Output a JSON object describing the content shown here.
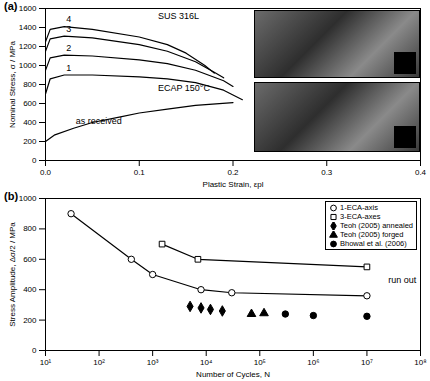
{
  "chart_data": [
    {
      "type": "line",
      "title": "(a)",
      "x_label": "Plastic Strain, εpl",
      "y_label": "Nominal Stress, σ / MPa",
      "xlim": [
        0,
        0.4
      ],
      "xticks": [
        {
          "value": 0,
          "label": "0.0"
        },
        0.1,
        0.2,
        0.3,
        0.4
      ],
      "ylim": [
        0,
        1600
      ],
      "yticks": [
        0,
        200,
        400,
        600,
        800,
        1000,
        1200,
        1400,
        1600
      ],
      "grid": false,
      "series": [
        {
          "name": "as received",
          "color": "#000000",
          "line_style": "solid",
          "x": [
            0,
            0.01,
            0.03,
            0.05,
            0.08,
            0.1,
            0.13,
            0.16,
            0.2
          ],
          "values": [
            200,
            270,
            340,
            400,
            460,
            500,
            540,
            580,
            610
          ]
        },
        {
          "name": "1",
          "color": "#000000",
          "line_style": "solid",
          "x": [
            0,
            0.005,
            0.02,
            0.05,
            0.1,
            0.13,
            0.16,
            0.19,
            0.21
          ],
          "values": [
            700,
            860,
            900,
            900,
            880,
            860,
            820,
            740,
            640
          ]
        },
        {
          "name": "2",
          "color": "#000000",
          "line_style": "solid",
          "x": [
            0,
            0.005,
            0.02,
            0.05,
            0.1,
            0.13,
            0.16,
            0.19,
            0.2
          ],
          "values": [
            950,
            1080,
            1110,
            1100,
            1060,
            1020,
            950,
            840,
            780
          ]
        },
        {
          "name": "3",
          "color": "#000000",
          "line_style": "solid",
          "x": [
            0,
            0.005,
            0.02,
            0.05,
            0.1,
            0.13,
            0.16,
            0.18,
            0.19
          ],
          "values": [
            1150,
            1280,
            1310,
            1290,
            1220,
            1150,
            1040,
            930,
            870
          ]
        },
        {
          "name": "4",
          "color": "#000000",
          "line_style": "solid",
          "x": [
            0,
            0.005,
            0.02,
            0.05,
            0.1,
            0.13,
            0.15,
            0.17,
            0.18
          ],
          "values": [
            1250,
            1380,
            1410,
            1380,
            1300,
            1220,
            1130,
            1000,
            920
          ]
        }
      ],
      "annotations": [
        {
          "text": "SUS 316L",
          "x": 0.12,
          "y": 1520
        },
        {
          "text": "ECAP 150°C",
          "x": 0.12,
          "y": 760
        }
      ]
    },
    {
      "type": "scatter",
      "title": "(b)",
      "x_label": "Number of Cycles, N",
      "y_label": "Stress Amplitude, Δσ/2 / MPa",
      "log": "x",
      "xlim": [
        10,
        100000000
      ],
      "xticks": [
        {
          "value": 10,
          "label": "10¹"
        },
        {
          "value": 100,
          "label": "10²"
        },
        {
          "value": 1000,
          "label": "10³"
        },
        {
          "value": 10000,
          "label": "10⁴"
        },
        {
          "value": 100000,
          "label": "10⁵"
        },
        {
          "value": 1000000,
          "label": "10⁶"
        },
        {
          "value": 10000000,
          "label": "10⁷"
        },
        {
          "value": 100000000,
          "label": "10⁸"
        }
      ],
      "ylim": [
        0,
        1000
      ],
      "yticks": [
        0,
        200,
        400,
        600,
        800,
        1000
      ],
      "grid": false,
      "legend": "top-right",
      "series": [
        {
          "name": "1-ECA-axis",
          "color": "#000000",
          "marker": "circle_open",
          "line_style": "solid",
          "x": [
            30,
            400,
            1000,
            8000,
            30000,
            10000000
          ],
          "values": [
            900,
            600,
            500,
            400,
            380,
            360
          ]
        },
        {
          "name": "3-ECA-axes",
          "color": "#000000",
          "marker": "square_open",
          "line_style": "solid",
          "x": [
            1500,
            7000,
            10000000
          ],
          "values": [
            700,
            600,
            550
          ]
        },
        {
          "name": "Teoh (2005) annealed",
          "color": "#000000",
          "marker": "diamond",
          "line_style": "none",
          "x": [
            5000,
            8000,
            12000,
            20000
          ],
          "values": [
            290,
            280,
            270,
            260
          ]
        },
        {
          "name": "Teoh (2005) forged",
          "color": "#000000",
          "marker": "triangle",
          "line_style": "none",
          "x": [
            70000,
            120000
          ],
          "values": [
            240,
            245
          ]
        },
        {
          "name": "Bhowal et al. (2006)",
          "color": "#000000",
          "marker": "circle",
          "line_style": "none",
          "x": [
            300000,
            1000000,
            10000000
          ],
          "values": [
            240,
            230,
            225
          ]
        }
      ],
      "annotations": [
        {
          "text": "run out",
          "x": 25000000,
          "y": 460
        }
      ]
    }
  ]
}
